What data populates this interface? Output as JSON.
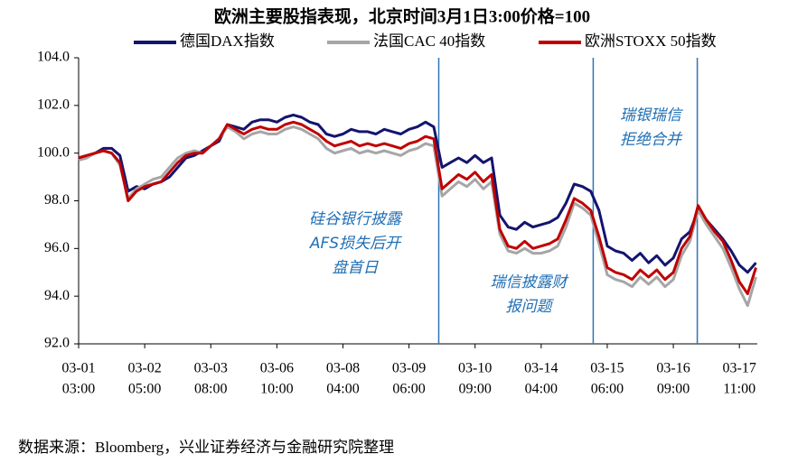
{
  "chart_data": {
    "type": "line",
    "title": "欧洲主要股指表现，北京时间3月1日3:00价格=100",
    "source": "数据来源：Bloomberg，兴业证券经济与金融研究院整理",
    "categories": [
      [
        "03-01",
        "03:00"
      ],
      null,
      null,
      null,
      null,
      null,
      null,
      null,
      [
        "03-02",
        "05:00"
      ],
      null,
      null,
      null,
      null,
      null,
      null,
      null,
      [
        "03-03",
        "08:00"
      ],
      null,
      null,
      null,
      null,
      null,
      null,
      null,
      [
        "03-06",
        "10:00"
      ],
      null,
      null,
      null,
      null,
      null,
      null,
      null,
      [
        "03-08",
        "04:00"
      ],
      null,
      null,
      null,
      null,
      null,
      null,
      null,
      [
        "03-09",
        "06:00"
      ],
      null,
      null,
      null,
      null,
      null,
      null,
      null,
      [
        "03-10",
        "09:00"
      ],
      null,
      null,
      null,
      null,
      null,
      null,
      null,
      [
        "03-14",
        "04:00"
      ],
      null,
      null,
      null,
      null,
      null,
      null,
      null,
      [
        "03-15",
        "06:00"
      ],
      null,
      null,
      null,
      null,
      null,
      null,
      null,
      [
        "03-16",
        "09:00"
      ],
      null,
      null,
      null,
      null,
      null,
      null,
      null,
      [
        "03-17",
        "11:00"
      ],
      null,
      null
    ],
    "series": [
      {
        "name": "德国DAX指数",
        "color": "#14146e",
        "values": [
          99.8,
          99.9,
          100.0,
          100.2,
          100.2,
          99.9,
          98.4,
          98.6,
          98.5,
          98.7,
          98.8,
          99.0,
          99.4,
          99.8,
          99.9,
          100.1,
          100.3,
          100.5,
          101.2,
          101.1,
          101.0,
          101.3,
          101.4,
          101.4,
          101.3,
          101.5,
          101.6,
          101.5,
          101.3,
          101.2,
          100.8,
          100.7,
          100.8,
          101.0,
          100.9,
          100.9,
          100.8,
          101.0,
          100.9,
          100.8,
          101.0,
          101.1,
          101.3,
          101.1,
          99.4,
          99.6,
          99.8,
          99.6,
          99.9,
          99.6,
          99.8,
          97.4,
          96.9,
          96.8,
          97.1,
          96.9,
          97.0,
          97.1,
          97.3,
          97.9,
          98.7,
          98.6,
          98.4,
          97.6,
          96.1,
          95.9,
          95.8,
          95.5,
          95.8,
          95.4,
          95.7,
          95.3,
          95.6,
          96.4,
          96.7,
          97.6,
          97.2,
          96.8,
          96.4,
          95.9,
          95.3,
          95.0,
          95.4
        ]
      },
      {
        "name": "法国CAC 40指数",
        "color": "#a6a6a6",
        "values": [
          99.7,
          99.8,
          100.0,
          100.1,
          100.0,
          99.5,
          98.1,
          98.5,
          98.7,
          98.9,
          99.0,
          99.4,
          99.8,
          100.0,
          100.1,
          100.0,
          100.3,
          100.6,
          101.1,
          100.9,
          100.6,
          100.8,
          100.9,
          100.8,
          100.8,
          101.0,
          101.1,
          101.0,
          100.8,
          100.6,
          100.2,
          100.0,
          100.1,
          100.2,
          100.0,
          100.1,
          100.0,
          100.1,
          100.0,
          99.9,
          100.1,
          100.2,
          100.4,
          100.3,
          98.2,
          98.5,
          98.8,
          98.6,
          98.9,
          98.5,
          98.8,
          96.6,
          95.9,
          95.8,
          96.0,
          95.8,
          95.8,
          95.9,
          96.1,
          96.9,
          97.9,
          97.7,
          97.4,
          96.2,
          94.9,
          94.7,
          94.6,
          94.4,
          94.8,
          94.5,
          94.8,
          94.4,
          94.7,
          95.7,
          96.3,
          97.6,
          97.0,
          96.5,
          96.0,
          95.2,
          94.3,
          93.6,
          94.8
        ]
      },
      {
        "name": "欧洲STOXX 50指数",
        "color": "#c00000",
        "values": [
          99.8,
          99.9,
          100.0,
          100.1,
          100.0,
          99.6,
          98.0,
          98.4,
          98.6,
          98.7,
          98.8,
          99.2,
          99.6,
          99.9,
          100.0,
          100.0,
          100.3,
          100.6,
          101.2,
          101.0,
          100.8,
          101.0,
          101.1,
          101.0,
          101.0,
          101.2,
          101.3,
          101.2,
          101.0,
          100.8,
          100.5,
          100.3,
          100.4,
          100.5,
          100.3,
          100.4,
          100.3,
          100.4,
          100.3,
          100.2,
          100.4,
          100.5,
          100.7,
          100.6,
          98.5,
          98.8,
          99.1,
          98.9,
          99.2,
          98.8,
          99.1,
          96.8,
          96.1,
          96.0,
          96.3,
          96.0,
          96.1,
          96.2,
          96.4,
          97.2,
          98.1,
          97.9,
          97.6,
          96.5,
          95.2,
          95.0,
          94.9,
          94.7,
          95.1,
          94.8,
          95.1,
          94.7,
          95.0,
          96.0,
          96.5,
          97.8,
          97.2,
          96.7,
          96.3,
          95.5,
          94.6,
          94.1,
          95.2
        ]
      }
    ],
    "ylim": [
      92,
      104
    ],
    "yticks": [
      {
        "value": 92,
        "label": "92.0"
      },
      {
        "value": 94,
        "label": "94.0"
      },
      {
        "value": 96,
        "label": "96.0"
      },
      {
        "value": 98,
        "label": "98.0"
      },
      {
        "value": 100,
        "label": "100.0"
      },
      {
        "value": 102,
        "label": "102.0"
      },
      {
        "value": 104,
        "label": "104.0"
      }
    ],
    "event_color": "#2e75b6",
    "events": [
      {
        "x": 43.6,
        "label": [
          "硅谷银行披露",
          "AFS损失后开",
          "盘首日"
        ]
      },
      {
        "x": 62.3,
        "label": [
          "瑞信披露财",
          "报问题"
        ]
      },
      {
        "x": 74.9,
        "label": [
          "瑞银瑞信",
          "拒绝合并"
        ]
      }
    ]
  }
}
